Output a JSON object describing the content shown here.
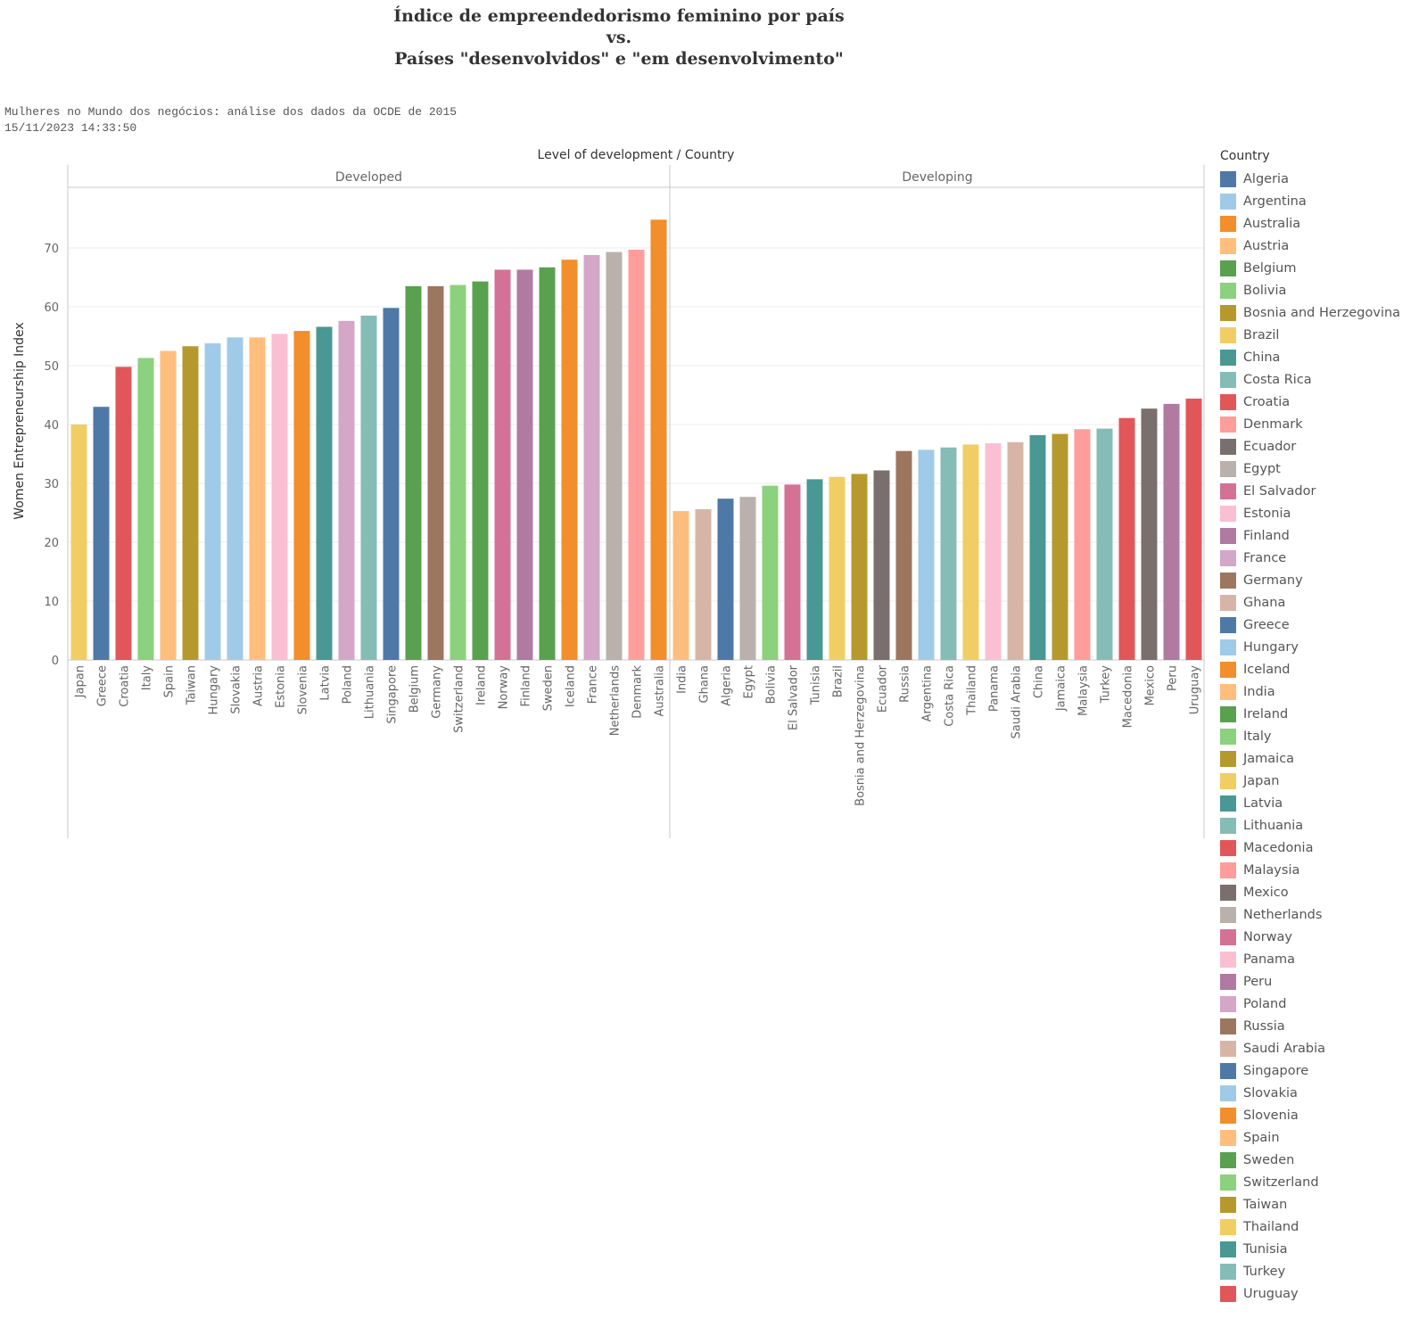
{
  "title": {
    "line1": "Índice de empreendedorismo feminino por país",
    "line2": "vs.",
    "line3": "Países \"desenvolvidos\" e \"em desenvolvimento\""
  },
  "meta": {
    "subtitle": "Mulheres no Mundo dos negócios: análise dos dados da OCDE de 2015",
    "timestamp": "15/11/2023 14:33:50"
  },
  "legend": {
    "title": "Country",
    "items": [
      {
        "label": "Algeria",
        "color": "#4e79a7"
      },
      {
        "label": "Argentina",
        "color": "#a0cbe8"
      },
      {
        "label": "Australia",
        "color": "#f28e2b"
      },
      {
        "label": "Austria",
        "color": "#ffbe7d"
      },
      {
        "label": "Belgium",
        "color": "#59a14f"
      },
      {
        "label": "Bolivia",
        "color": "#8cd17d"
      },
      {
        "label": "Bosnia and Herzegovina",
        "color": "#b6992d"
      },
      {
        "label": "Brazil",
        "color": "#f1ce63"
      },
      {
        "label": "China",
        "color": "#499894"
      },
      {
        "label": "Costa Rica",
        "color": "#86bcb6"
      },
      {
        "label": "Croatia",
        "color": "#e15759"
      },
      {
        "label": "Denmark",
        "color": "#ff9d9a"
      },
      {
        "label": "Ecuador",
        "color": "#79706e"
      },
      {
        "label": "Egypt",
        "color": "#bab0ac"
      },
      {
        "label": "El Salvador",
        "color": "#d37295"
      },
      {
        "label": "Estonia",
        "color": "#fabfd2"
      },
      {
        "label": "Finland",
        "color": "#b07aa1"
      },
      {
        "label": "France",
        "color": "#d4a6c8"
      },
      {
        "label": "Germany",
        "color": "#9d7660"
      },
      {
        "label": "Ghana",
        "color": "#d7b5a6"
      },
      {
        "label": "Greece",
        "color": "#4e79a7"
      },
      {
        "label": "Hungary",
        "color": "#a0cbe8"
      },
      {
        "label": "Iceland",
        "color": "#f28e2b"
      },
      {
        "label": "India",
        "color": "#ffbe7d"
      },
      {
        "label": "Ireland",
        "color": "#59a14f"
      },
      {
        "label": "Italy",
        "color": "#8cd17d"
      },
      {
        "label": "Jamaica",
        "color": "#b6992d"
      },
      {
        "label": "Japan",
        "color": "#f1ce63"
      },
      {
        "label": "Latvia",
        "color": "#499894"
      },
      {
        "label": "Lithuania",
        "color": "#86bcb6"
      },
      {
        "label": "Macedonia",
        "color": "#e15759"
      },
      {
        "label": "Malaysia",
        "color": "#ff9d9a"
      },
      {
        "label": "Mexico",
        "color": "#79706e"
      },
      {
        "label": "Netherlands",
        "color": "#bab0ac"
      },
      {
        "label": "Norway",
        "color": "#d37295"
      },
      {
        "label": "Panama",
        "color": "#fabfd2"
      },
      {
        "label": "Peru",
        "color": "#b07aa1"
      },
      {
        "label": "Poland",
        "color": "#d4a6c8"
      },
      {
        "label": "Russia",
        "color": "#9d7660"
      },
      {
        "label": "Saudi Arabia",
        "color": "#d7b5a6"
      },
      {
        "label": "Singapore",
        "color": "#4e79a7"
      },
      {
        "label": "Slovakia",
        "color": "#a0cbe8"
      },
      {
        "label": "Slovenia",
        "color": "#f28e2b"
      },
      {
        "label": "Spain",
        "color": "#ffbe7d"
      },
      {
        "label": "Sweden",
        "color": "#59a14f"
      },
      {
        "label": "Switzerland",
        "color": "#8cd17d"
      },
      {
        "label": "Taiwan",
        "color": "#b6992d"
      },
      {
        "label": "Thailand",
        "color": "#f1ce63"
      },
      {
        "label": "Tunisia",
        "color": "#499894"
      },
      {
        "label": "Turkey",
        "color": "#86bcb6"
      },
      {
        "label": "Uruguay",
        "color": "#e15759"
      }
    ]
  },
  "chart_data": {
    "type": "bar",
    "header": "Level of development  /  Country",
    "ylabel": "Women Entrepreneurship Index",
    "ylim": [
      0,
      80
    ],
    "yticks": [
      0,
      10,
      20,
      30,
      40,
      50,
      60,
      70
    ],
    "grid": true,
    "legend_placement": "right",
    "panels": [
      {
        "name": "Developed",
        "categories": [
          "Japan",
          "Greece",
          "Croatia",
          "Italy",
          "Spain",
          "Taiwan",
          "Hungary",
          "Slovakia",
          "Austria",
          "Estonia",
          "Slovenia",
          "Latvia",
          "Poland",
          "Lithuania",
          "Singapore",
          "Belgium",
          "Germany",
          "Switzerland",
          "Ireland",
          "Norway",
          "Finland",
          "Sweden",
          "Iceland",
          "France",
          "Netherlands",
          "Denmark",
          "Australia"
        ],
        "values": [
          40.0,
          43.0,
          49.8,
          51.3,
          52.5,
          53.3,
          53.8,
          54.8,
          54.8,
          55.4,
          55.9,
          56.6,
          57.6,
          58.5,
          59.8,
          63.5,
          63.5,
          63.7,
          64.3,
          66.3,
          66.3,
          66.7,
          68.0,
          68.8,
          69.3,
          69.7,
          74.8
        ]
      },
      {
        "name": "Developing",
        "categories": [
          "India",
          "Ghana",
          "Algeria",
          "Egypt",
          "Bolivia",
          "El Salvador",
          "Tunisia",
          "Brazil",
          "Bosnia and Herzegovina",
          "Ecuador",
          "Russia",
          "Argentina",
          "Costa Rica",
          "Thailand",
          "Panama",
          "Saudi Arabia",
          "China",
          "Jamaica",
          "Malaysia",
          "Turkey",
          "Macedonia",
          "Mexico",
          "Peru",
          "Uruguay"
        ],
        "values": [
          25.3,
          25.6,
          27.4,
          27.7,
          29.6,
          29.8,
          30.7,
          31.1,
          31.6,
          32.2,
          35.5,
          35.7,
          36.1,
          36.6,
          36.8,
          37.0,
          38.2,
          38.4,
          39.2,
          39.3,
          41.1,
          42.7,
          43.5,
          44.4
        ]
      }
    ]
  }
}
